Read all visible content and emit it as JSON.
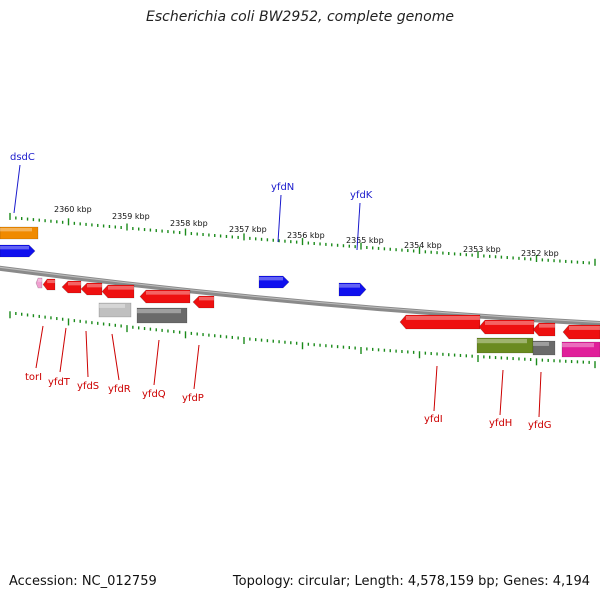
{
  "title": "Escherichia coli BW2952, complete genome",
  "footer": {
    "accession": "Accession: NC_012759",
    "summary": "Topology: circular; Length: 4,578,159 bp; Genes: 4,194"
  },
  "colors": {
    "backbone": "#8a8a8a",
    "tick": "#1a8a1a",
    "label_forward": "#1a1acc",
    "label_reverse": "#cc0000",
    "forward_gene": "#1010ee",
    "reverse_gene": "#ee1010",
    "orange": "#f08a00",
    "gray_light": "#c0c0c0",
    "gray_dark": "#6a6a6a",
    "olive": "#6a8a20",
    "magenta": "#e0209a",
    "pink": "#f0a0d0"
  },
  "scale_labels": [
    "2360 kbp",
    "2359 kbp",
    "2358 kbp",
    "2357 kbp",
    "2356 kbp",
    "2355 kbp",
    "2354 kbp",
    "2353 kbp",
    "2352 kbp"
  ],
  "gene_labels": {
    "forward": [
      "dsdC",
      "yfdN",
      "yfdK"
    ],
    "reverse": [
      "torI",
      "yfdT",
      "yfdS",
      "yfdR",
      "yfdQ",
      "yfdP",
      "yfdI",
      "yfdH",
      "yfdG"
    ]
  }
}
